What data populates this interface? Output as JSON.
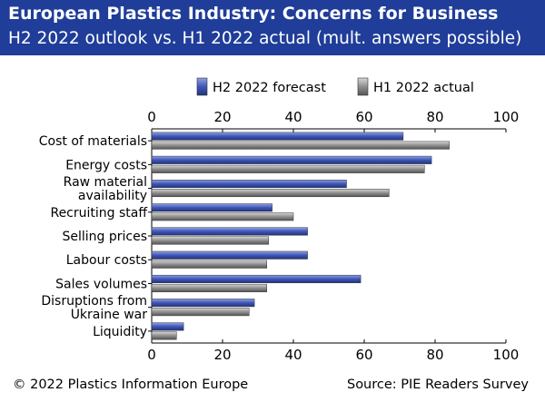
{
  "header": {
    "title": "European Plastics Industry: Concerns for Business",
    "subtitle": "H2 2022 outlook vs. H1 2022 actual (mult. answers possible)"
  },
  "footer": {
    "copyright": "© 2022 Plastics Information Europe",
    "source": "Source: PIE Readers Survey"
  },
  "chart_data": {
    "type": "bar",
    "orientation": "horizontal",
    "categories": [
      [
        "Cost of materials"
      ],
      [
        "Energy costs"
      ],
      [
        "Raw material",
        "availability"
      ],
      [
        "Recruiting staff"
      ],
      [
        "Selling prices"
      ],
      [
        "Labour costs"
      ],
      [
        "Sales volumes"
      ],
      [
        "Disruptions from",
        "Ukraine war"
      ],
      [
        "Liquidity"
      ]
    ],
    "series": [
      {
        "name": "H2 2022 forecast",
        "color": "#3f56b5",
        "values": [
          71,
          79,
          55,
          34,
          44,
          44,
          59,
          29,
          9
        ]
      },
      {
        "name": "H1 2022 actual",
        "color": "#8f8f8f",
        "values": [
          84,
          77,
          67,
          40,
          33,
          32.5,
          32.5,
          27.5,
          7
        ]
      }
    ],
    "xlim": [
      0,
      100
    ],
    "xticks": [
      0,
      20,
      40,
      60,
      80,
      100
    ],
    "xaxis_position": "top and bottom",
    "grid": false,
    "legend_position": "top-right"
  }
}
